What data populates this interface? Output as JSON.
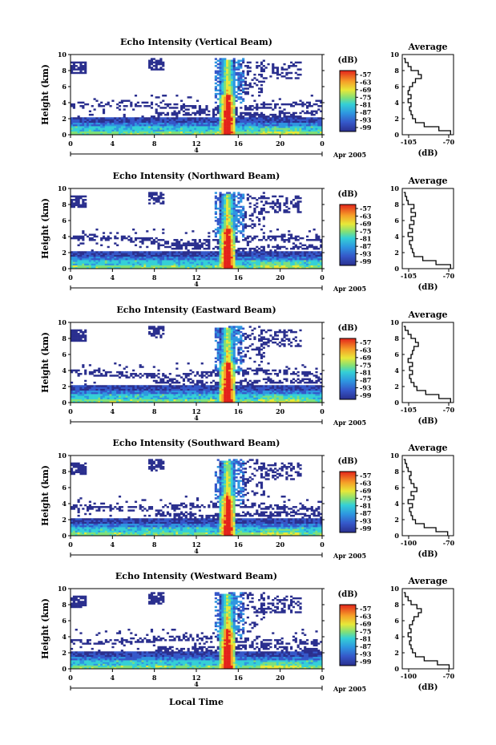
{
  "figure": {
    "xlabel": "Local Time",
    "date_label": "Apr 2005",
    "day_label": "4"
  },
  "chart_data": [
    {
      "type": "heatmap",
      "title": "Echo Intensity (Vertical Beam)",
      "xlabel": "",
      "ylabel": "Height (km)",
      "xlim": [
        0,
        24
      ],
      "ylim": [
        0,
        10
      ],
      "xticks": [
        "0",
        "4",
        "8",
        "12",
        "16",
        "20",
        "0"
      ],
      "yticks": [
        "0",
        "2",
        "4",
        "6",
        "8",
        "10"
      ],
      "colorbar": {
        "unit": "(dB)",
        "ticks": [
          "-57",
          "-63",
          "-69",
          "-75",
          "-81",
          "-87",
          "-93",
          "-99"
        ]
      },
      "profile": {
        "title": "Average",
        "xlabel": "(dB)",
        "xlim": [
          -105,
          -70
        ],
        "xticks": [
          "-105",
          "-70"
        ],
        "heights_km": [
          0,
          0.5,
          1,
          1.5,
          2,
          2.5,
          3,
          3.5,
          4,
          4.5,
          5,
          5.5,
          6,
          6.5,
          7,
          7.5,
          8,
          8.5,
          9,
          9.5
        ],
        "values_db": [
          -72,
          -80,
          -90,
          -96,
          -98,
          -99,
          -100,
          -99,
          -101,
          -99,
          -101,
          -100,
          -98,
          -96,
          -92,
          -94,
          -99,
          -101,
          -103,
          -104
        ]
      }
    },
    {
      "type": "heatmap",
      "title": "Echo Intensity (Northward Beam)",
      "xlabel": "",
      "ylabel": "Height (km)",
      "xlim": [
        0,
        24
      ],
      "ylim": [
        0,
        10
      ],
      "xticks": [
        "0",
        "4",
        "8",
        "12",
        "16",
        "20",
        "0"
      ],
      "yticks": [
        "0",
        "2",
        "4",
        "6",
        "8",
        "10"
      ],
      "colorbar": {
        "unit": "(dB)",
        "ticks": [
          "-57",
          "-63",
          "-69",
          "-75",
          "-81",
          "-87",
          "-93",
          "-99"
        ]
      },
      "profile": {
        "title": "Average",
        "xlabel": "(dB)",
        "xlim": [
          -105,
          -70
        ],
        "xticks": [
          "-105",
          "-70"
        ],
        "heights_km": [
          0,
          0.5,
          1,
          1.5,
          2,
          2.5,
          3,
          3.5,
          4,
          4.5,
          5,
          5.5,
          6,
          6.5,
          7,
          7.5,
          8,
          8.5,
          9,
          9.5
        ],
        "values_db": [
          -72,
          -82,
          -91,
          -97,
          -98,
          -99,
          -100,
          -98,
          -101,
          -98,
          -100,
          -97,
          -99,
          -96,
          -99,
          -97,
          -101,
          -102,
          -103,
          -104
        ]
      }
    },
    {
      "type": "heatmap",
      "title": "Echo Intensity (Eastward Beam)",
      "xlabel": "",
      "ylabel": "Height (km)",
      "xlim": [
        0,
        24
      ],
      "ylim": [
        0,
        10
      ],
      "xticks": [
        "0",
        "4",
        "8",
        "12",
        "16",
        "20",
        "0"
      ],
      "yticks": [
        "0",
        "2",
        "4",
        "6",
        "8",
        "10"
      ],
      "colorbar": {
        "unit": "(dB)",
        "ticks": [
          "-57",
          "-63",
          "-69",
          "-75",
          "-81",
          "-87",
          "-93",
          "-99"
        ]
      },
      "profile": {
        "title": "Average",
        "xlabel": "(dB)",
        "xlim": [
          -105,
          -70
        ],
        "xticks": [
          "-105",
          "-70"
        ],
        "heights_km": [
          0,
          0.5,
          1,
          1.5,
          2,
          2.5,
          3,
          3.5,
          4,
          4.5,
          5,
          5.5,
          6,
          6.5,
          7,
          7.5,
          8,
          8.5,
          9,
          9.5
        ],
        "values_db": [
          -72,
          -80,
          -89,
          -95,
          -97,
          -99,
          -100,
          -98,
          -100,
          -98,
          -101,
          -99,
          -98,
          -97,
          -94,
          -96,
          -99,
          -101,
          -103,
          -104
        ]
      }
    },
    {
      "type": "heatmap",
      "title": "Echo Intensity (Southward Beam)",
      "xlabel": "",
      "ylabel": "Height (km)",
      "xlim": [
        0,
        24
      ],
      "ylim": [
        0,
        10
      ],
      "xticks": [
        "0",
        "4",
        "8",
        "12",
        "16",
        "20",
        "0"
      ],
      "yticks": [
        "0",
        "2",
        "4",
        "6",
        "8",
        "10"
      ],
      "colorbar": {
        "unit": "(dB)",
        "ticks": [
          "-57",
          "-63",
          "-69",
          "-75",
          "-81",
          "-87",
          "-93",
          "-99"
        ]
      },
      "profile": {
        "title": "Average",
        "xlabel": "(dB)",
        "xlim": [
          -105,
          -70
        ],
        "xticks": [
          "-100",
          "-70"
        ],
        "heights_km": [
          0,
          0.5,
          1,
          1.5,
          2,
          2.5,
          3,
          3.5,
          4,
          4.5,
          5,
          5.5,
          6,
          6.5,
          7,
          7.5,
          8,
          8.5,
          9,
          9.5
        ],
        "values_db": [
          -74,
          -82,
          -90,
          -96,
          -98,
          -99,
          -100,
          -98,
          -101,
          -97,
          -99,
          -95,
          -97,
          -99,
          -100,
          -99,
          -101,
          -102,
          -103,
          -104
        ]
      }
    },
    {
      "type": "heatmap",
      "title": "Echo Intensity (Westward Beam)",
      "xlabel": "",
      "ylabel": "Height (km)",
      "xlim": [
        0,
        24
      ],
      "ylim": [
        0,
        10
      ],
      "xticks": [
        "0",
        "4",
        "8",
        "12",
        "16",
        "20",
        "0"
      ],
      "yticks": [
        "0",
        "2",
        "4",
        "6",
        "8",
        "10"
      ],
      "colorbar": {
        "unit": "(dB)",
        "ticks": [
          "-57",
          "-63",
          "-69",
          "-75",
          "-81",
          "-87",
          "-93",
          "-99"
        ]
      },
      "profile": {
        "title": "Average",
        "xlabel": "(dB)",
        "xlim": [
          -105,
          -70
        ],
        "xticks": [
          "-100",
          "-70"
        ],
        "heights_km": [
          0,
          0.5,
          1,
          1.5,
          2,
          2.5,
          3,
          3.5,
          4,
          4.5,
          5,
          5.5,
          6,
          6.5,
          7,
          7.5,
          8,
          8.5,
          9,
          9.5
        ],
        "values_db": [
          -73,
          -81,
          -90,
          -96,
          -98,
          -99,
          -100,
          -99,
          -101,
          -99,
          -100,
          -98,
          -97,
          -94,
          -92,
          -95,
          -99,
          -101,
          -103,
          -104
        ]
      }
    }
  ]
}
